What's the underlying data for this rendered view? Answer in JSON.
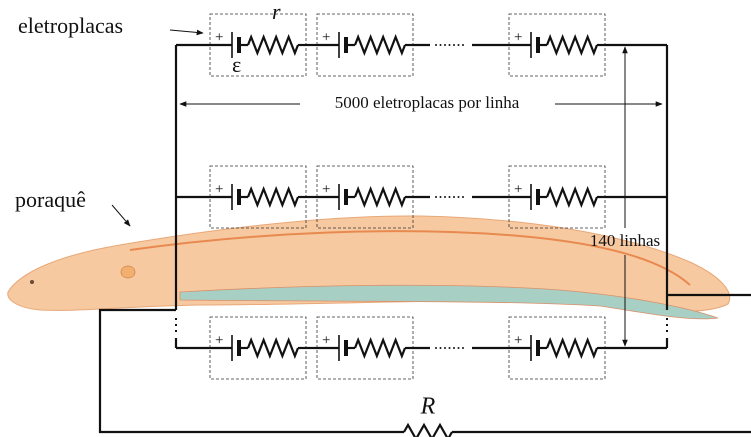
{
  "label_cells": "eletroplacas",
  "label_r": "r",
  "label_emf": "ε",
  "label_per_row": "5000 eletroplacas por linha",
  "label_eel": "poraquê",
  "label_rows": "140 linhas",
  "label_R": "R",
  "polarity": "+"
}
